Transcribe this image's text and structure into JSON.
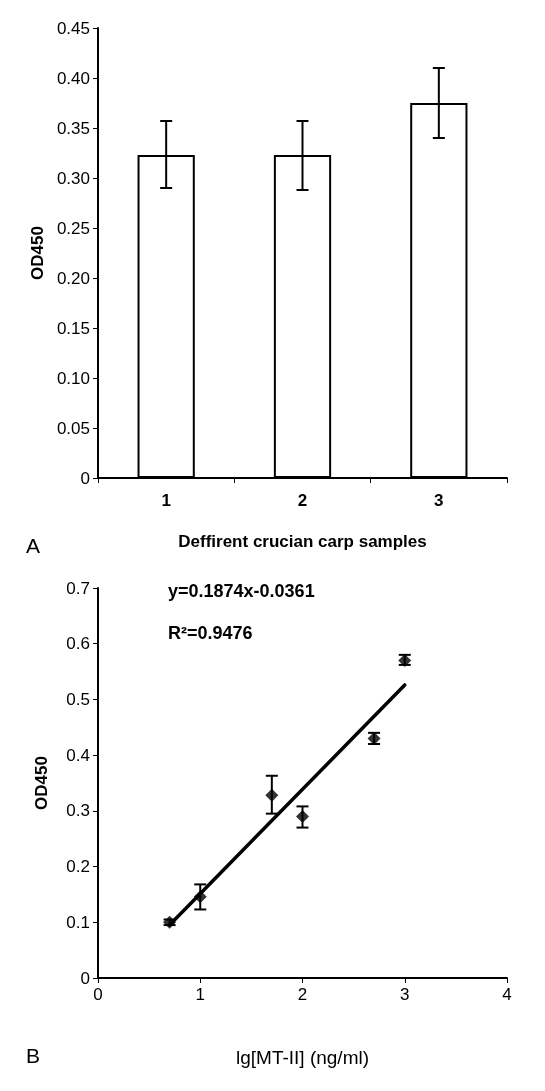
{
  "chart_data": [
    {
      "type": "bar",
      "ylabel": "OD450",
      "xlabel": "Deffirent crucian carp samples",
      "categories": [
        "1",
        "2",
        "3"
      ],
      "values": [
        0.323,
        0.323,
        0.375
      ],
      "errors": [
        [
          0.29,
          0.357
        ],
        [
          0.288,
          0.357
        ],
        [
          0.34,
          0.41
        ]
      ],
      "color": "#ffffff",
      "ylim": [
        0,
        0.45
      ],
      "yticks": [
        0,
        0.05,
        {
          "value": 0.1,
          "label": "0.10"
        },
        0.15,
        {
          "value": 0.2,
          "label": "0.20"
        },
        0.25,
        {
          "value": 0.3,
          "label": "0.30"
        },
        0.35,
        {
          "value": 0.4,
          "label": "0.40"
        },
        0.45
      ],
      "grid": false,
      "annotations": [
        "A"
      ]
    },
    {
      "type": "scatter",
      "ylabel": "OD450",
      "xlabel": "lg[MT-II] (ng/ml)",
      "marker": "diamond",
      "xlim": [
        0,
        4
      ],
      "xticks": [
        0,
        1,
        2,
        3,
        4
      ],
      "ylim": [
        0,
        0.7
      ],
      "yticks": [
        0,
        0.1,
        0.2,
        0.3,
        0.4,
        0.5,
        0.6,
        0.7
      ],
      "grid": false,
      "series": [
        {
          "type": "scatter",
          "color": "#000000",
          "x": [
            0.7,
            1,
            1.7,
            2,
            2.7,
            3
          ],
          "values": [
            0.1,
            0.146,
            0.328,
            0.29,
            0.43,
            0.57
          ],
          "errors": [
            [
              0.095,
              0.105
            ],
            [
              0.123,
              0.168
            ],
            [
              0.295,
              0.363
            ],
            [
              0.27,
              0.308
            ],
            [
              0.42,
              0.44
            ],
            [
              0.562,
              0.58
            ]
          ]
        },
        {
          "type": "line",
          "color": "#000000",
          "marker": "none",
          "line_style": "solid",
          "x": [
            0.7,
            3
          ],
          "values": [
            0.095,
            0.526
          ]
        }
      ],
      "annotations": [
        "y=0.1874x-0.0361",
        "R²=0.9476",
        "B"
      ]
    }
  ]
}
